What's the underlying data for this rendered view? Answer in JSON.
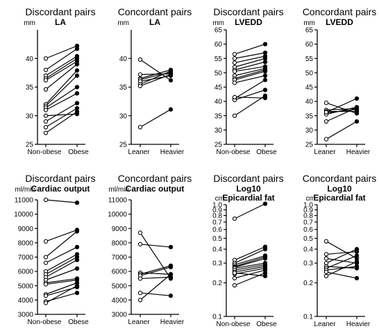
{
  "chart_data": [
    {
      "type": "line",
      "title": "Discordant pairs",
      "subtitle": "LA",
      "unit": "mm",
      "yscale": "linear",
      "ylim": [
        25,
        45
      ],
      "yticks": [
        "25",
        "30",
        "35",
        "40"
      ],
      "ytick_values": [
        25,
        30,
        35,
        40
      ],
      "categories": [
        "Non-obese",
        "Obese"
      ],
      "pairs": [
        [
          40.0,
          42.2
        ],
        [
          38.0,
          41.7
        ],
        [
          37.0,
          40.4
        ],
        [
          36.5,
          40.0
        ],
        [
          36.2,
          39.5
        ],
        [
          34.6,
          39.0
        ],
        [
          32.0,
          37.9
        ],
        [
          31.7,
          37.0
        ],
        [
          31.4,
          35.0
        ],
        [
          31.0,
          33.9
        ],
        [
          29.0,
          32.2
        ],
        [
          28.0,
          31.3
        ],
        [
          27.0,
          30.7
        ],
        [
          30.0,
          30.3
        ]
      ]
    },
    {
      "type": "line",
      "title": "Concordant pairs",
      "subtitle": "LA",
      "unit": "mm",
      "yscale": "linear",
      "ylim": [
        25,
        45
      ],
      "yticks": [
        "25",
        "30",
        "35",
        "40"
      ],
      "ytick_values": [
        25,
        30,
        35,
        40
      ],
      "categories": [
        "Leaner",
        "Heavier"
      ],
      "pairs": [
        [
          39.8,
          36.2
        ],
        [
          37.2,
          37.3
        ],
        [
          36.5,
          38.0
        ],
        [
          36.3,
          37.6
        ],
        [
          36.0,
          37.0
        ],
        [
          35.5,
          37.8
        ],
        [
          35.2,
          37.2
        ],
        [
          28.0,
          31.1
        ]
      ]
    },
    {
      "type": "line",
      "title": "Discordant pairs",
      "subtitle": "LVEDD",
      "unit": "mm",
      "yscale": "linear",
      "ylim": [
        25,
        65
      ],
      "yticks": [
        "25",
        "30",
        "35",
        "40",
        "45",
        "50",
        "55",
        "60",
        "65"
      ],
      "ytick_values": [
        25,
        30,
        35,
        40,
        45,
        50,
        55,
        60,
        65
      ],
      "categories": [
        "Non-obese",
        "Obese"
      ],
      "pairs": [
        [
          56.5,
          60.0
        ],
        [
          55.0,
          57.0
        ],
        [
          53.5,
          55.8
        ],
        [
          52.0,
          55.0
        ],
        [
          51.0,
          53.8
        ],
        [
          50.5,
          52.2
        ],
        [
          49.0,
          51.5
        ],
        [
          48.0,
          51.0
        ],
        [
          47.5,
          50.5
        ],
        [
          46.5,
          49.0
        ],
        [
          41.0,
          47.5
        ],
        [
          40.5,
          44.0
        ],
        [
          41.5,
          41.2
        ],
        [
          35.0,
          42.0
        ]
      ]
    },
    {
      "type": "line",
      "title": "Concordant pairs",
      "subtitle": "LVEDD",
      "unit": "mm",
      "yscale": "linear",
      "ylim": [
        25,
        65
      ],
      "yticks": [
        "25",
        "30",
        "35",
        "40",
        "45",
        "50",
        "55",
        "60",
        "65"
      ],
      "ytick_values": [
        25,
        30,
        35,
        40,
        45,
        50,
        55,
        60,
        65
      ],
      "categories": [
        "Leaner",
        "Heavier"
      ],
      "pairs": [
        [
          39.5,
          35.8
        ],
        [
          37.0,
          37.5
        ],
        [
          36.5,
          36.5
        ],
        [
          36.0,
          37.2
        ],
        [
          35.5,
          38.0
        ],
        [
          36.2,
          41.0
        ],
        [
          33.0,
          37.8
        ],
        [
          26.8,
          33.0
        ]
      ]
    },
    {
      "type": "line",
      "title": "Discordant pairs",
      "subtitle": "Cardiac output",
      "unit": "ml/min",
      "yscale": "linear",
      "ylim": [
        3000,
        11000
      ],
      "yticks": [
        "3000",
        "4000",
        "5000",
        "6000",
        "7000",
        "8000",
        "9000",
        "10000",
        "11000"
      ],
      "ytick_values": [
        3000,
        4000,
        5000,
        6000,
        7000,
        8000,
        9000,
        10000,
        11000
      ],
      "categories": [
        "Non-obese",
        "Obese"
      ],
      "pairs": [
        [
          11000,
          10800
        ],
        [
          8100,
          8900
        ],
        [
          7000,
          8800
        ],
        [
          6600,
          7700
        ],
        [
          6000,
          7200
        ],
        [
          5800,
          7000
        ],
        [
          5600,
          6800
        ],
        [
          5400,
          6200
        ],
        [
          5200,
          5500
        ],
        [
          5100,
          5400
        ],
        [
          4400,
          5200
        ],
        [
          4300,
          4900
        ],
        [
          3900,
          4500
        ],
        [
          3800,
          5000
        ]
      ]
    },
    {
      "type": "line",
      "title": "Concordant pairs",
      "subtitle": "Cardiac output",
      "unit": "ml/min",
      "yscale": "linear",
      "ylim": [
        3000,
        11000
      ],
      "yticks": [
        "3000",
        "4000",
        "5000",
        "6000",
        "7000",
        "8000",
        "9000",
        "10000",
        "11000"
      ],
      "ytick_values": [
        3000,
        4000,
        5000,
        6000,
        7000,
        8000,
        9000,
        10000,
        11000
      ],
      "categories": [
        "Leaner",
        "Heavier"
      ],
      "pairs": [
        [
          8700,
          5500
        ],
        [
          7900,
          7700
        ],
        [
          5900,
          5800
        ],
        [
          5800,
          6400
        ],
        [
          5700,
          6300
        ],
        [
          5500,
          5600
        ],
        [
          4500,
          4300
        ],
        [
          4000,
          5800
        ]
      ]
    },
    {
      "type": "line",
      "title": "Discordant pairs",
      "subtitle": "Log10\nEpicardial fat",
      "unit": "cm",
      "yscale": "log",
      "ylim": [
        0.1,
        1.0
      ],
      "yticks": [
        "0.1",
        "0.2",
        "0.3",
        "0.4",
        "0.5",
        "0.6",
        "0.7",
        "0.8",
        "0.9",
        "1.0"
      ],
      "ytick_values": [
        0.1,
        0.2,
        0.3,
        0.4,
        0.5,
        0.6,
        0.7,
        0.8,
        0.9,
        1.0
      ],
      "categories": [
        "Non-obese",
        "Obese"
      ],
      "pairs": [
        [
          0.75,
          1.02
        ],
        [
          0.32,
          0.42
        ],
        [
          0.3,
          0.4
        ],
        [
          0.29,
          0.35
        ],
        [
          0.28,
          0.34
        ],
        [
          0.275,
          0.33
        ],
        [
          0.27,
          0.3
        ],
        [
          0.26,
          0.29
        ],
        [
          0.25,
          0.28
        ],
        [
          0.24,
          0.27
        ],
        [
          0.22,
          0.26
        ],
        [
          0.19,
          0.245
        ],
        [
          0.245,
          0.23
        ]
      ]
    },
    {
      "type": "line",
      "title": "Concordant pairs",
      "subtitle": "Log10\nEpicardial fat",
      "unit": "cm",
      "yscale": "log",
      "ylim": [
        0.1,
        1.0
      ],
      "yticks": [
        "0.1",
        "0.2",
        "0.3",
        "0.4",
        "0.5",
        "0.6",
        "0.7",
        "0.8",
        "0.9",
        "1.0"
      ],
      "ytick_values": [
        0.1,
        0.2,
        0.3,
        0.4,
        0.5,
        0.6,
        0.7,
        0.8,
        0.9,
        1.0
      ],
      "categories": [
        "Leaner",
        "Heavier"
      ],
      "pairs": [
        [
          0.47,
          0.33
        ],
        [
          0.36,
          0.38
        ],
        [
          0.33,
          0.3
        ],
        [
          0.3,
          0.4
        ],
        [
          0.28,
          0.27
        ],
        [
          0.27,
          0.35
        ],
        [
          0.26,
          0.28
        ],
        [
          0.25,
          0.22
        ],
        [
          0.23,
          0.31
        ]
      ]
    }
  ]
}
